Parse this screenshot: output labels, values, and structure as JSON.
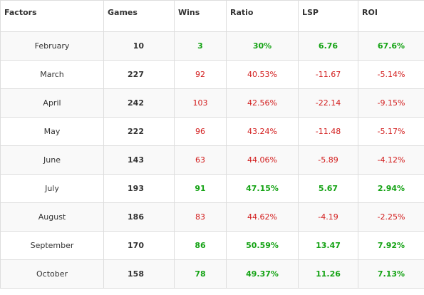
{
  "table": {
    "headers": [
      "Factors",
      "Games",
      "Wins",
      "Ratio",
      "LSP",
      "ROI"
    ],
    "rows": [
      {
        "factor": "February",
        "games": "10",
        "wins": "3",
        "ratio": "30%",
        "lsp": "6.76",
        "roi": "67.6%",
        "status": "positive"
      },
      {
        "factor": "March",
        "games": "227",
        "wins": "92",
        "ratio": "40.53%",
        "lsp": "-11.67",
        "roi": "-5.14%",
        "status": "negative"
      },
      {
        "factor": "April",
        "games": "242",
        "wins": "103",
        "ratio": "42.56%",
        "lsp": "-22.14",
        "roi": "-9.15%",
        "status": "negative"
      },
      {
        "factor": "May",
        "games": "222",
        "wins": "96",
        "ratio": "43.24%",
        "lsp": "-11.48",
        "roi": "-5.17%",
        "status": "negative"
      },
      {
        "factor": "June",
        "games": "143",
        "wins": "63",
        "ratio": "44.06%",
        "lsp": "-5.89",
        "roi": "-4.12%",
        "status": "negative"
      },
      {
        "factor": "July",
        "games": "193",
        "wins": "91",
        "ratio": "47.15%",
        "lsp": "5.67",
        "roi": "2.94%",
        "status": "positive"
      },
      {
        "factor": "August",
        "games": "186",
        "wins": "83",
        "ratio": "44.62%",
        "lsp": "-4.19",
        "roi": "-2.25%",
        "status": "negative"
      },
      {
        "factor": "September",
        "games": "170",
        "wins": "86",
        "ratio": "50.59%",
        "lsp": "13.47",
        "roi": "7.92%",
        "status": "positive"
      },
      {
        "factor": "October",
        "games": "158",
        "wins": "78",
        "ratio": "49.37%",
        "lsp": "11.26",
        "roi": "7.13%",
        "status": "positive"
      }
    ]
  },
  "colors": {
    "positive": "#15a315",
    "negative": "#d21a1a",
    "text": "#333333",
    "border": "#dddddd",
    "stripe": "#f9f9f9"
  }
}
